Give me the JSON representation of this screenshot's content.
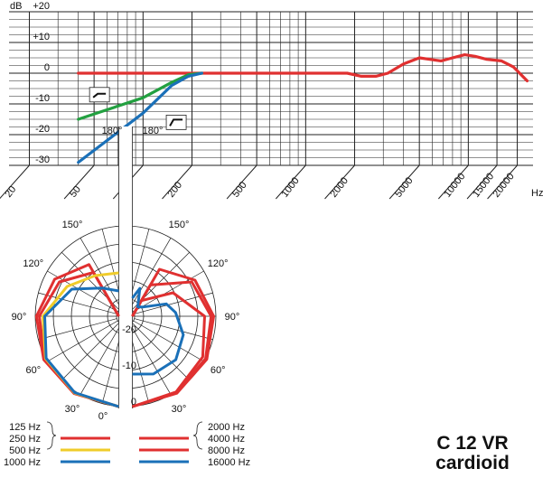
{
  "chart_data": [
    {
      "type": "line",
      "title": "",
      "ylabel": "dB",
      "xlabel": "Hz",
      "x_scale": "log",
      "xlim": [
        15,
        25000
      ],
      "ylim": [
        -30,
        20
      ],
      "x_ticks": [
        "20",
        "50",
        "100",
        "200",
        "500",
        "1000",
        "2000",
        "5000",
        "10000",
        "15000",
        "20000"
      ],
      "y_ticks": [
        "+20",
        "+10",
        "0",
        "-10",
        "-20",
        "-30"
      ],
      "unit_label_y": "dB",
      "unit_label_x": "Hz",
      "grid": true,
      "series": [
        {
          "color": "#e03030",
          "points": [
            [
              40,
              0
            ],
            [
              100,
              0
            ],
            [
              200,
              0
            ],
            [
              500,
              0
            ],
            [
              1000,
              0
            ],
            [
              1800,
              0
            ],
            [
              2200,
              -1
            ],
            [
              2700,
              -1
            ],
            [
              3200,
              0
            ],
            [
              4000,
              3
            ],
            [
              5000,
              5
            ],
            [
              5800,
              4.5
            ],
            [
              6800,
              4
            ],
            [
              8000,
              5
            ],
            [
              9500,
              6
            ],
            [
              11000,
              5.5
            ],
            [
              13000,
              4.5
            ],
            [
              16000,
              4
            ],
            [
              19000,
              2
            ],
            [
              23000,
              -2.5
            ]
          ]
        },
        {
          "color": "#22a040",
          "points": [
            [
              40,
              -15
            ],
            [
              100,
              -8
            ],
            [
              150,
              -3
            ],
            [
              190,
              -0.5
            ],
            [
              230,
              0
            ]
          ]
        },
        {
          "color": "#1a70b8",
          "points": [
            [
              40,
              -29
            ],
            [
              100,
              -13
            ],
            [
              150,
              -4
            ],
            [
              190,
              -1
            ],
            [
              230,
              0
            ]
          ]
        }
      ],
      "annotations": [
        {
          "type": "filter-switch-symbol",
          "variant": "shelf"
        },
        {
          "type": "filter-switch-symbol",
          "variant": "cut"
        }
      ]
    },
    {
      "type": "polar",
      "title": "",
      "angle_labels": [
        "0°",
        "30°",
        "60°",
        "90°",
        "120°",
        "150°",
        "180°"
      ],
      "radial_labels": [
        "0",
        "-10",
        "-20"
      ],
      "r_range_db": [
        -25,
        0
      ],
      "left_half_series": [
        {
          "name": "125 Hz",
          "color": "#e03030",
          "points": [
            [
              0,
              0
            ],
            [
              30,
              -0.3
            ],
            [
              60,
              -1
            ],
            [
              90,
              -2.2
            ],
            [
              120,
              -4.5
            ],
            [
              150,
              -8.5
            ],
            [
              180,
              -25
            ]
          ]
        },
        {
          "name": "250 Hz",
          "color": "#e03030",
          "points": [
            [
              0,
              0
            ],
            [
              30,
              -0.4
            ],
            [
              60,
              -1.4
            ],
            [
              90,
              -3
            ],
            [
              120,
              -6
            ],
            [
              150,
              -11
            ],
            [
              180,
              -25
            ]
          ]
        },
        {
          "name": "500 Hz",
          "color": "#f0cc2a",
          "points": [
            [
              0,
              0
            ],
            [
              30,
              -0.5
            ],
            [
              60,
              -1.6
            ],
            [
              90,
              -4
            ],
            [
              120,
              -8.5
            ],
            [
              150,
              -12
            ],
            [
              180,
              -13
            ]
          ]
        },
        {
          "name": "1000 Hz",
          "color": "#1a70b8",
          "points": [
            [
              0,
              0
            ],
            [
              30,
              -0.6
            ],
            [
              60,
              -1.8
            ],
            [
              90,
              -4.5
            ],
            [
              120,
              -10
            ],
            [
              150,
              -16
            ],
            [
              180,
              -18
            ]
          ]
        }
      ],
      "right_half_series": [
        {
          "name": "2000 Hz",
          "color": "#e03030",
          "points": [
            [
              0,
              0
            ],
            [
              30,
              -0.4
            ],
            [
              60,
              -1.2
            ],
            [
              90,
              -2.5
            ],
            [
              120,
              -5
            ],
            [
              150,
              -10
            ],
            [
              180,
              -25
            ]
          ]
        },
        {
          "name": "4000 Hz",
          "color": "#e03030",
          "points": [
            [
              0,
              0
            ],
            [
              30,
              -0.5
            ],
            [
              60,
              -1.6
            ],
            [
              90,
              -3.2
            ],
            [
              120,
              -6
            ],
            [
              150,
              -15
            ],
            [
              180,
              -25
            ]
          ]
        },
        {
          "name": "8000 Hz",
          "color": "#e03030",
          "points": [
            [
              0,
              0
            ],
            [
              30,
              -0.8
            ],
            [
              60,
              -2.5
            ],
            [
              90,
              -5
            ],
            [
              120,
              -12
            ],
            [
              150,
              -20
            ],
            [
              180,
              -25
            ]
          ]
        },
        {
          "name": "16000 Hz",
          "color": "#1a70b8",
          "points": [
            [
              0,
              -9
            ],
            [
              20,
              -8
            ],
            [
              45,
              -8
            ],
            [
              70,
              -10
            ],
            [
              95,
              -13
            ],
            [
              110,
              -15
            ],
            [
              130,
              -21
            ],
            [
              150,
              -22
            ],
            [
              165,
              -17
            ],
            [
              180,
              -20
            ]
          ]
        }
      ]
    }
  ],
  "legend": {
    "left": [
      {
        "label": "125 Hz",
        "color": ""
      },
      {
        "label": "250 Hz",
        "color": "#e03030"
      },
      {
        "label": "500 Hz",
        "color": "#f0cc2a"
      },
      {
        "label": "1000 Hz",
        "color": "#1a70b8"
      }
    ],
    "right": [
      {
        "label": "2000 Hz",
        "color": ""
      },
      {
        "label": "4000 Hz",
        "color": "#e03030"
      },
      {
        "label": "8000 Hz",
        "color": "#e03030"
      },
      {
        "label": "16000 Hz",
        "color": "#1a70b8"
      }
    ]
  },
  "product": {
    "model": "C 12 VR",
    "pattern": "cardioid"
  },
  "colors": {
    "red": "#e03030",
    "green": "#22a040",
    "blue": "#1a70b8",
    "yellow": "#f0cc2a"
  }
}
